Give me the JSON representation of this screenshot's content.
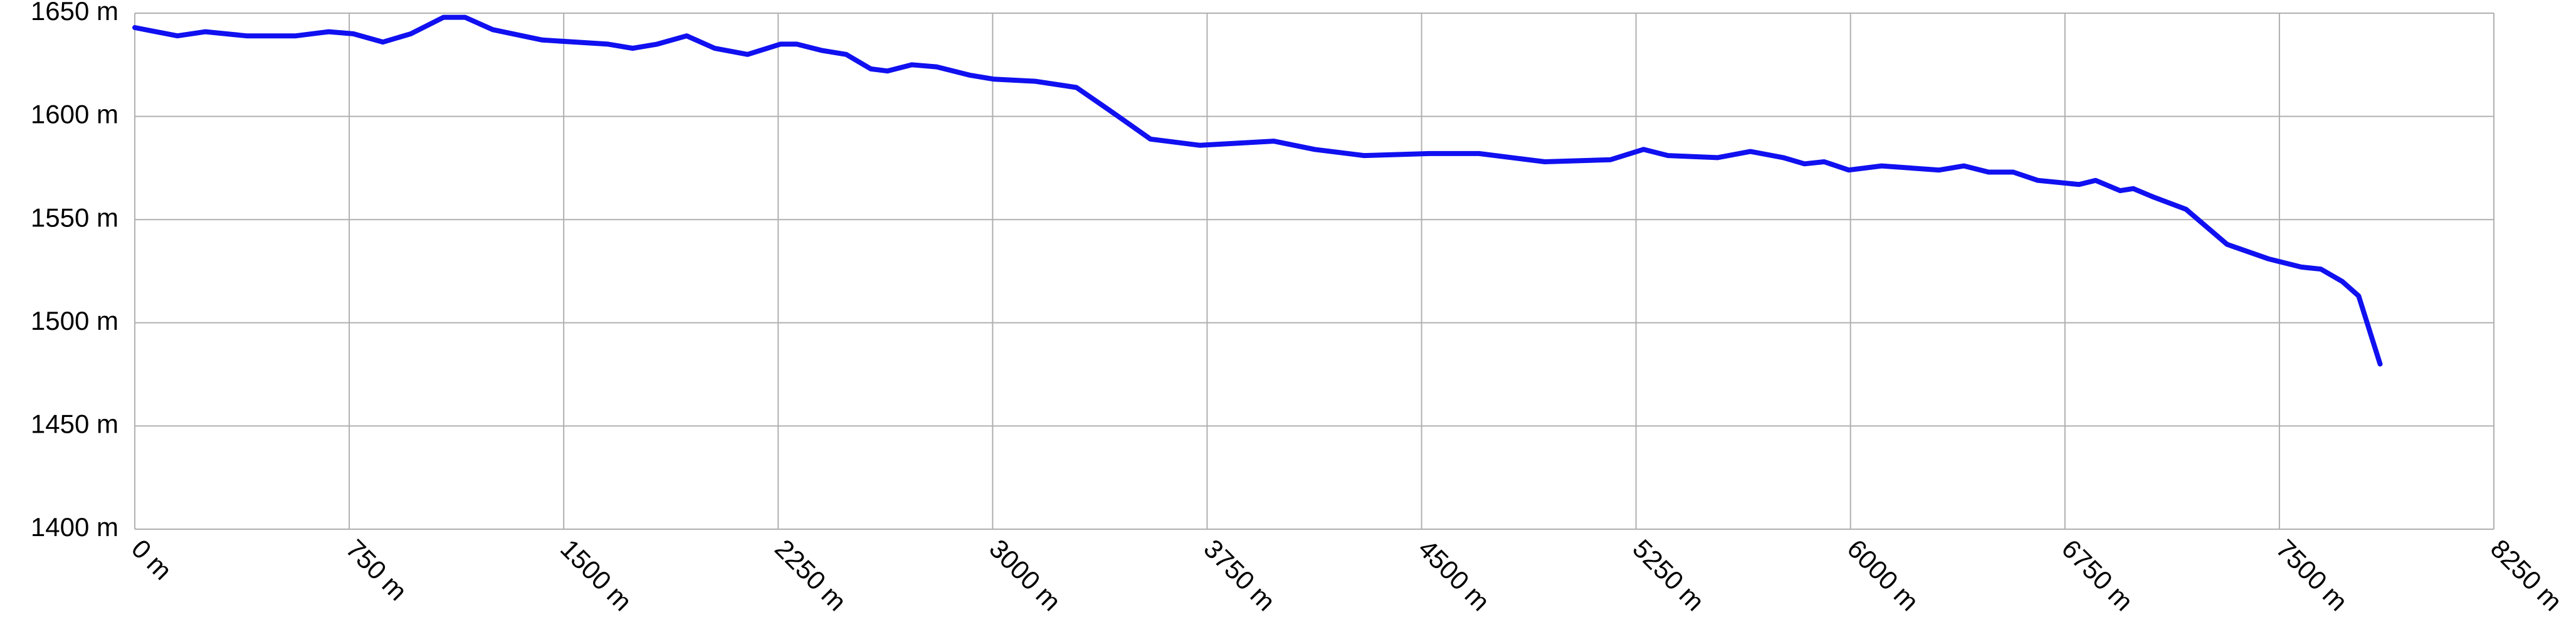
{
  "chart_data": {
    "type": "line",
    "x": [
      0,
      149,
      247,
      391,
      563,
      678,
      764,
      868,
      965,
      1080,
      1155,
      1252,
      1425,
      1655,
      1741,
      1827,
      1930,
      2028,
      2143,
      2258,
      2315,
      2401,
      2488,
      2574,
      2632,
      2718,
      2804,
      2919,
      3005,
      3149,
      3293,
      3408,
      3552,
      3724,
      3983,
      4126,
      4299,
      4529,
      4701,
      4931,
      5161,
      5276,
      5362,
      5535,
      5650,
      5765,
      5839,
      5908,
      5994,
      6109,
      6310,
      6397,
      6483,
      6569,
      6655,
      6799,
      6857,
      6943,
      6989,
      7058,
      7173,
      7317,
      7461,
      7576,
      7645,
      7720,
      7777,
      7852
    ],
    "series": [
      {
        "color": "#1010f0",
        "values": [
          1643,
          1639,
          1641,
          1639,
          1639,
          1641,
          1640,
          1636,
          1640,
          1648,
          1648,
          1642,
          1637,
          1635,
          1633,
          1635,
          1639,
          1633,
          1630,
          1635,
          1635,
          1632,
          1630,
          1623,
          1622,
          1625,
          1624,
          1620,
          1618,
          1617,
          1614,
          1603,
          1589,
          1586,
          1588,
          1584,
          1581,
          1582,
          1582,
          1578,
          1579,
          1584,
          1581,
          1580,
          1583,
          1580,
          1577,
          1578,
          1574,
          1576,
          1574,
          1576,
          1573,
          1573,
          1569,
          1567,
          1569,
          1564,
          1565,
          1561,
          1555,
          1538,
          1531,
          1527,
          1526,
          1520,
          1513,
          1480
        ]
      }
    ],
    "xlim": [
      0,
      8250
    ],
    "xticks": [
      {
        "value": 0,
        "label": "0 m"
      },
      {
        "value": 750,
        "label": "750 m"
      },
      {
        "value": 1500,
        "label": "1500 m"
      },
      {
        "value": 2250,
        "label": "2250 m"
      },
      {
        "value": 3000,
        "label": "3000 m"
      },
      {
        "value": 3750,
        "label": "3750 m"
      },
      {
        "value": 4500,
        "label": "4500 m"
      },
      {
        "value": 5250,
        "label": "5250 m"
      },
      {
        "value": 6000,
        "label": "6000 m"
      },
      {
        "value": 6750,
        "label": "6750 m"
      },
      {
        "value": 7500,
        "label": "7500 m"
      },
      {
        "value": 8250,
        "label": "8250 m"
      }
    ],
    "ylim": [
      1400,
      1650
    ],
    "yticks": [
      {
        "value": 1400,
        "label": "1400 m"
      },
      {
        "value": 1450,
        "label": "1450 m"
      },
      {
        "value": 1500,
        "label": "1500 m"
      },
      {
        "value": 1550,
        "label": "1550 m"
      },
      {
        "value": 1600,
        "label": "1600 m"
      },
      {
        "value": 1650,
        "label": "1650 m"
      }
    ],
    "grid": true
  }
}
